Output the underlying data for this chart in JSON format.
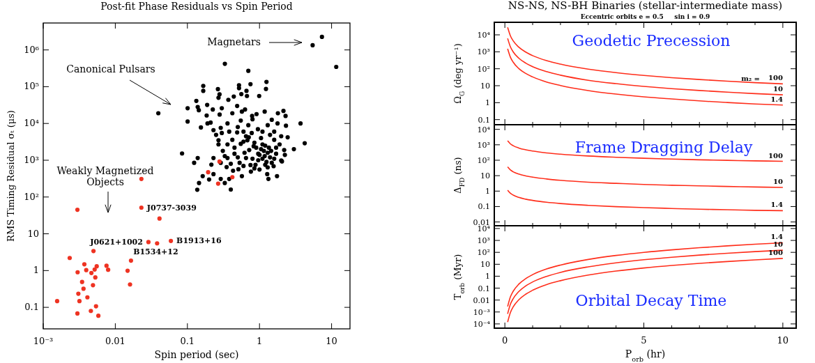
{
  "chart_data": [
    {
      "type": "scatter",
      "title": "Post-fit Phase Residuals vs Spin Period",
      "xlabel": "Spin period (sec)",
      "ylabel": "RMS Timing Residual σₜ (μs)",
      "log": "xy",
      "marker": "circle",
      "xlim": [
        0.001,
        18
      ],
      "ylim": [
        0.026,
        5400000
      ],
      "xticks": [
        {
          "value": 0.001,
          "label": "10⁻³"
        },
        0.01,
        0.1,
        1,
        10
      ],
      "yticks": [
        0.1,
        1,
        10,
        {
          "value": 100,
          "label": "10²"
        },
        {
          "value": 1000,
          "label": "10³"
        },
        {
          "value": 10000,
          "label": "10⁴"
        },
        {
          "value": 100000,
          "label": "10⁵"
        },
        {
          "value": 1000000,
          "label": "10⁶"
        }
      ],
      "series": [
        {
          "color": "#000000",
          "x": [
            5.46,
            7.35,
            11.6,
            0.331,
            0.7,
            0.0395,
            0.0843,
            3.71,
            4.24,
            3.0,
            0.166,
            0.166,
            0.265,
            0.279,
            0.27,
            0.52,
            0.52,
            0.75,
            1.25,
            1.23,
            0.66,
            0.67,
            0.56,
            0.99,
            0.44,
            0.37,
            0.133,
            0.139,
            0.144,
            0.1007,
            0.1007,
            0.154,
            0.185,
            0.188,
            0.225,
            0.3,
            0.28,
            0.19,
            0.21,
            0.23,
            0.25,
            0.29,
            0.36,
            0.42,
            0.49,
            0.57,
            0.63,
            0.79,
            0.91,
            1.18,
            1.48,
            1.78,
            1.8,
            2.15,
            2.3,
            2.33,
            2.46,
            2.2,
            2.25,
            2.0,
            1.6,
            1.4,
            1.1,
            0.96,
            0.83,
            0.71,
            0.6,
            0.49,
            0.42,
            0.36,
            0.31,
            0.27,
            0.23,
            0.215,
            0.29,
            0.36,
            0.45,
            0.53,
            0.65,
            0.75,
            0.96,
            1.18,
            1.48,
            1.3,
            1.05,
            1.7,
            1.45,
            1.9,
            0.124,
            0.139,
            0.137,
            0.145,
            0.163,
            0.2,
            0.23,
            0.29,
            0.33,
            0.38,
            0.4,
            0.57,
            0.76,
            1.33,
            1.75,
            1.28,
            1.0,
            0.88,
            0.51,
            0.43,
            0.35,
            1.57,
            2.05,
            0.45,
            0.5,
            0.55,
            0.62,
            0.68,
            0.72,
            0.8,
            0.85,
            0.9,
            1.0,
            1.05,
            1.1,
            1.15,
            1.2,
            1.25,
            1.3,
            1.35,
            1.4,
            0.38,
            0.5,
            0.6,
            0.7,
            0.95,
            1.1,
            0.33,
            0.4,
            0.6,
            0.85,
            1.2,
            1.6,
            1.7,
            0.27,
            0.3,
            0.55,
            0.8,
            1.3,
            1.6,
            2.0,
            0.65,
            0.78
          ],
          "values": [
            1340000,
            2260000,
            346000,
            420000,
            270000,
            19000,
            1530,
            10000,
            2900,
            2000,
            105000,
            77000,
            86000,
            62000,
            50000,
            110000,
            91000,
            117000,
            135000,
            87000,
            77000,
            56000,
            63000,
            56000,
            54000,
            44000,
            41000,
            28000,
            23000,
            26000,
            11300,
            7800,
            16500,
            32000,
            24000,
            26000,
            17500,
            10000,
            10600,
            6600,
            4900,
            7600,
            10000,
            19000,
            30000,
            21000,
            24000,
            16000,
            18000,
            21000,
            12600,
            10000,
            19000,
            22000,
            16000,
            8700,
            4200,
            1900,
            1400,
            990,
            3600,
            4900,
            2700,
            1500,
            2400,
            4200,
            3200,
            5700,
            3600,
            2700,
            1800,
            2700,
            1150,
            760,
            850,
            1150,
            1500,
            850,
            1150,
            740,
            1000,
            1300,
            850,
            640,
            2000,
            1500,
            1800,
            2700,
            850,
            1150,
            158,
            240,
            370,
            300,
            420,
            310,
            240,
            310,
            160,
            370,
            490,
            310,
            370,
            420,
            560,
            750,
            570,
            520,
            650,
            690,
            930,
            2200,
            1200,
            2800,
            1600,
            3500,
            1900,
            1100,
            3000,
            2200,
            1400,
            4000,
            1100,
            1800,
            2500,
            900,
            1600,
            2200,
            1200,
            6000,
            8000,
            6000,
            9000,
            7000,
            6000,
            1300,
            800,
            700,
            600,
            750,
            1100,
            2200,
            3500,
            5500,
            12000,
            13000,
            9000,
            6000,
            4500,
            4500,
            5500
          ]
        },
        {
          "color": "#ee3322",
          "x": [
            0.023,
            0.00298,
            0.023,
            0.041,
            0.0288,
            0.038,
            0.059,
            0.00498,
            0.00233,
            0.0165,
            0.00372,
            0.003,
            0.00395,
            0.00466,
            0.00517,
            0.00552,
            0.00528,
            0.00755,
            0.00795,
            0.0148,
            0.00346,
            0.00362,
            0.0049,
            0.016,
            0.00307,
            0.0041,
            0.00318,
            0.00156,
            0.0054,
            0.00298,
            0.00458,
            0.00582,
            0.279,
            0.194,
            0.267,
            0.42
          ],
          "values": [
            310,
            45,
            51.5,
            26,
            5.97,
            5.5,
            6.4,
            3.4,
            2.2,
            1.86,
            1.48,
            0.9,
            1.03,
            0.86,
            1.07,
            1.31,
            0.65,
            1.35,
            1.05,
            0.99,
            0.49,
            0.32,
            0.4,
            0.42,
            0.235,
            0.187,
            0.148,
            0.148,
            0.107,
            0.068,
            0.08,
            0.059,
            920,
            472,
            231,
            347
          ]
        }
      ],
      "annotations": [
        "Magnetars",
        "Canonical Pulsars",
        "Weakly Magnetized\nObjects",
        {
          "text": "J0737-3039",
          "x": 0.023,
          "y": 51.5
        },
        {
          "text": "J0621+1002",
          "x": 0.0288,
          "y": 5.97
        },
        {
          "text": "B1534+12",
          "x": 0.038,
          "y": 5.5
        },
        {
          "text": "B1913+16",
          "x": 0.059,
          "y": 6.4
        }
      ]
    },
    {
      "type": "line",
      "title": "NS-NS, NS-BH Binaries (stellar-intermediate mass)",
      "subtitle": "Eccentric orbits e = 0.5     sin i = 0.9",
      "ylabel": "Ω$_{G}$ (deg yr⁻¹)",
      "log": true,
      "tick_labels": "y",
      "xlim": [
        -0.38,
        10.48
      ],
      "ylim": [
        0.05,
        55000
      ],
      "xticks": [
        0,
        {
          "value": 1,
          "label": null
        },
        {
          "value": 2,
          "label": null
        },
        {
          "value": 3,
          "label": null
        },
        {
          "value": 4,
          "label": null
        },
        5,
        {
          "value": 6,
          "label": null
        },
        {
          "value": 7,
          "label": null
        },
        {
          "value": 8,
          "label": null
        },
        {
          "value": 9,
          "label": null
        },
        10
      ],
      "yticks": [
        0.1,
        1,
        10,
        {
          "value": 100,
          "label": "10²"
        },
        {
          "value": 1000,
          "label": "10³"
        },
        {
          "value": 10000,
          "label": "10⁴"
        }
      ],
      "x": [
        0.1,
        0.2,
        0.3,
        0.5,
        0.75,
        1,
        1.5,
        2,
        3,
        4,
        5,
        6,
        7,
        8,
        9,
        10
      ],
      "series": [
        {
          "name": "100",
          "color": "#ff2d1a",
          "values": [
            27500,
            8670,
            4420,
            1880,
            960,
            593,
            302,
            187,
            95,
            59,
            40.6,
            29.9,
            23.2,
            18.5,
            15.2,
            12.8
          ]
        },
        {
          "name": "10",
          "color": "#ff2d1a",
          "values": [
            6170,
            1950,
            990,
            420,
            215,
            133,
            68,
            42,
            21,
            13.2,
            9.1,
            6.7,
            5.2,
            4.2,
            3.4,
            2.9
          ]
        },
        {
          "name": "1.4",
          "color": "#ff2d1a",
          "values": [
            1510,
            480,
            243,
            103,
            53,
            33,
            16.6,
            10.3,
            5.2,
            3.2,
            2.2,
            1.65,
            1.27,
            1.02,
            0.84,
            0.72
          ]
        }
      ],
      "annotations": [
        "Geodetic Precession",
        "m₂ ="
      ]
    },
    {
      "type": "line",
      "ylabel": "Δ$_{FD}$ (ns)",
      "log": true,
      "tick_labels": "y",
      "xlim": [
        -0.38,
        10.48
      ],
      "ylim": [
        0.0057,
        20000
      ],
      "xticks": [
        0,
        {
          "value": 1,
          "label": null
        },
        {
          "value": 2,
          "label": null
        },
        {
          "value": 3,
          "label": null
        },
        {
          "value": 4,
          "label": null
        },
        5,
        {
          "value": 6,
          "label": null
        },
        {
          "value": 7,
          "label": null
        },
        {
          "value": 8,
          "label": null
        },
        {
          "value": 9,
          "label": null
        },
        10
      ],
      "yticks": [
        0.01,
        0.1,
        1,
        10,
        {
          "value": 100,
          "label": "10²"
        },
        {
          "value": 1000,
          "label": "10³"
        },
        {
          "value": 10000,
          "label": "10⁴"
        }
      ],
      "x": [
        0.1,
        0.2,
        0.3,
        0.5,
        0.75,
        1,
        1.5,
        2,
        3,
        4,
        5,
        6,
        7,
        8,
        9,
        10
      ],
      "series": [
        {
          "name": "100",
          "color": "#ff2d1a",
          "values": [
            1820,
            1150,
            875,
            622,
            475,
            392,
            299,
            247,
            188,
            156,
            134,
            119,
            107,
            98,
            91,
            85
          ]
        },
        {
          "name": "10",
          "color": "#ff2d1a",
          "values": [
            37,
            23.4,
            17.8,
            12.7,
            9.7,
            8.0,
            6.1,
            5.0,
            3.8,
            3.2,
            2.7,
            2.4,
            2.2,
            2.0,
            1.85,
            1.73
          ]
        },
        {
          "name": "1.4",
          "color": "#ff2d1a",
          "values": [
            1.15,
            0.72,
            0.55,
            0.39,
            0.3,
            0.25,
            0.19,
            0.156,
            0.119,
            0.098,
            0.085,
            0.075,
            0.067,
            0.062,
            0.057,
            0.054
          ]
        }
      ],
      "annotations": [
        "Frame Dragging Delay"
      ]
    },
    {
      "type": "line",
      "ylabel": "T$_{orb}$ (Myr)",
      "xlabel": "P$_{orb}$ (hr)",
      "log": true,
      "xlim": [
        -0.38,
        10.48
      ],
      "ylim": [
        4.4e-05,
        17000
      ],
      "xticks": [
        0,
        {
          "value": 1,
          "label": null
        },
        {
          "value": 2,
          "label": null
        },
        {
          "value": 3,
          "label": null
        },
        {
          "value": 4,
          "label": null
        },
        5,
        {
          "value": 6,
          "label": null
        },
        {
          "value": 7,
          "label": null
        },
        {
          "value": 8,
          "label": null
        },
        {
          "value": 9,
          "label": null
        },
        10
      ],
      "yticks": [
        {
          "value": 0.0001,
          "label": "10⁻⁴"
        },
        {
          "value": 0.001,
          "label": "10⁻³"
        },
        0.01,
        0.1,
        1,
        10,
        {
          "value": 100,
          "label": "10²"
        },
        {
          "value": 1000,
          "label": "10³"
        },
        {
          "value": 10000,
          "label": "10⁴"
        }
      ],
      "x": [
        0.1,
        0.2,
        0.3,
        0.5,
        0.75,
        1,
        1.5,
        2,
        3,
        4,
        5,
        6,
        7,
        8,
        9,
        10
      ],
      "series": [
        {
          "name": "1.4",
          "color": "#ff2d1a",
          "values": [
            0.0029,
            0.0186,
            0.0548,
            0.214,
            0.63,
            1.36,
            4.0,
            8.6,
            25.5,
            55,
            100,
            162,
            244,
            348,
            478,
            630
          ]
        },
        {
          "name": "10",
          "color": "#ff2d1a",
          "values": [
            0.0007,
            0.0045,
            0.0132,
            0.0515,
            0.152,
            0.33,
            0.97,
            2.1,
            6.1,
            13.3,
            24,
            39,
            59,
            84,
            115,
            151
          ]
        },
        {
          "name": "100",
          "color": "#ff2d1a",
          "values": [
            0.000144,
            0.00091,
            0.0027,
            0.0105,
            0.031,
            0.067,
            0.198,
            0.42,
            1.24,
            2.7,
            4.9,
            8.0,
            12,
            17,
            23.5,
            31
          ]
        }
      ],
      "annotations": [
        "Orbital Decay Time"
      ]
    }
  ]
}
